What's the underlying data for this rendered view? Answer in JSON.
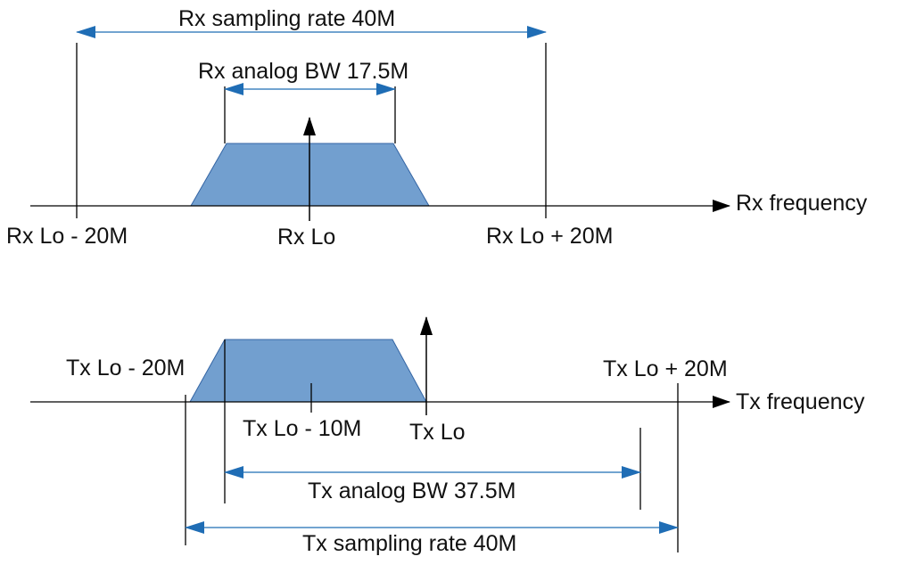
{
  "colors": {
    "band_fill": "#729fcf",
    "band_stroke": "#3465a4",
    "dimension_arrow": "#1f6db5",
    "line": "#000000"
  },
  "rx": {
    "sampling_label": "Rx sampling rate 40M",
    "bw_label": "Rx analog BW 17.5M",
    "axis_label": "Rx frequency",
    "lo_minus_label": "Rx Lo - 20M",
    "lo_label": "Rx Lo",
    "lo_plus_label": "Rx Lo + 20M"
  },
  "tx": {
    "sampling_label": "Tx sampling rate 40M",
    "bw_label": "Tx analog BW 37.5M",
    "axis_label": "Tx frequency",
    "lo_minus_label": "Tx Lo - 20M",
    "lo_minus10_label": "Tx Lo - 10M",
    "lo_label": "Tx Lo",
    "lo_plus_label": "Tx Lo + 20M"
  }
}
